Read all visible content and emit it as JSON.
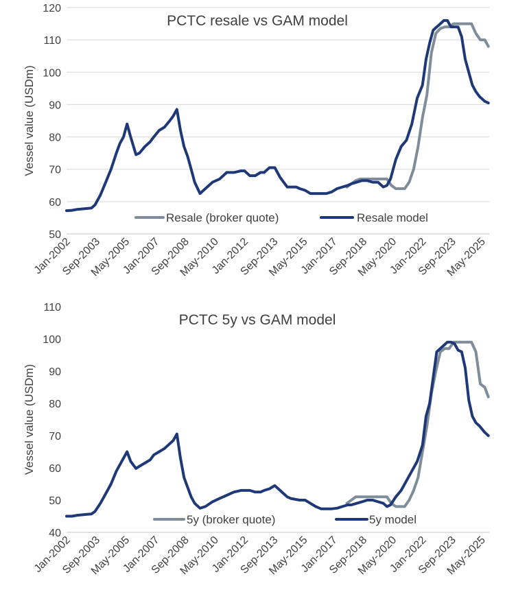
{
  "chart_data": [
    {
      "type": "line",
      "title": "PCTC resale vs GAM model",
      "ylabel": "Vessel value (USDm)",
      "xlabel": "",
      "ylim": [
        50,
        120
      ],
      "yticks": [
        50,
        60,
        70,
        80,
        90,
        100,
        110,
        120
      ],
      "xlim": [
        2002.0,
        2025.75
      ],
      "xtick_labels": [
        "Jan-2002",
        "Sep-2003",
        "May-2005",
        "Jan-2007",
        "Sep-2008",
        "May-2010",
        "Jan-2012",
        "Sep-2013",
        "May-2015",
        "Jan-2017",
        "Sep-2018",
        "May-2020",
        "Jan-2022",
        "Sep-2023",
        "May-2025"
      ],
      "xtick_values": [
        2002.0,
        2003.67,
        2005.33,
        2007.0,
        2008.67,
        2010.33,
        2012.0,
        2013.67,
        2015.33,
        2017.0,
        2018.67,
        2020.33,
        2022.0,
        2023.67,
        2025.33
      ],
      "grid": true,
      "legend": "bottom-center",
      "series": [
        {
          "name": "Resale (broker quote)",
          "color": "#7f8c99",
          "width": 4,
          "x": [
            2017.75,
            2018.0,
            2018.25,
            2018.5,
            2018.75,
            2019.0,
            2019.5,
            2019.75,
            2020.0,
            2020.25,
            2020.5,
            2020.75,
            2021.0,
            2021.25,
            2021.5,
            2021.75,
            2022.0,
            2022.25,
            2022.5,
            2022.75,
            2023.0,
            2023.25,
            2023.5,
            2023.75,
            2024.0,
            2024.25,
            2024.5,
            2024.75,
            2025.0,
            2025.25,
            2025.5,
            2025.7
          ],
          "y": [
            64.5,
            65.5,
            66.5,
            67,
            67,
            67,
            67,
            67,
            67,
            65,
            64,
            64,
            64,
            66,
            70,
            77,
            86,
            93,
            106,
            112,
            113.5,
            114,
            114,
            115,
            115,
            115,
            115,
            115,
            112,
            110,
            110,
            108
          ]
        },
        {
          "name": "Resale model",
          "color": "#1f3878",
          "width": 4,
          "x": [
            2002.0,
            2002.3,
            2002.6,
            2003.0,
            2003.4,
            2003.6,
            2003.9,
            2004.2,
            2004.5,
            2004.8,
            2005.0,
            2005.2,
            2005.4,
            2005.6,
            2005.9,
            2006.1,
            2006.4,
            2006.7,
            2006.9,
            2007.2,
            2007.5,
            2007.8,
            2008.0,
            2008.2,
            2008.4,
            2008.6,
            2008.8,
            2009.0,
            2009.2,
            2009.5,
            2009.8,
            2010.2,
            2010.6,
            2011.0,
            2011.4,
            2011.8,
            2012.0,
            2012.3,
            2012.6,
            2012.9,
            2013.1,
            2013.4,
            2013.7,
            2014.0,
            2014.2,
            2014.4,
            2014.6,
            2014.9,
            2015.1,
            2015.4,
            2015.7,
            2016.0,
            2016.3,
            2016.6,
            2016.9,
            2017.2,
            2017.5,
            2017.8,
            2018.0,
            2018.3,
            2018.6,
            2018.9,
            2019.2,
            2019.5,
            2019.8,
            2020.0,
            2020.2,
            2020.5,
            2020.8,
            2021.1,
            2021.4,
            2021.7,
            2022.0,
            2022.2,
            2022.4,
            2022.6,
            2022.8,
            2023.0,
            2023.2,
            2023.4,
            2023.6,
            2023.8,
            2024.0,
            2024.2,
            2024.4,
            2024.6,
            2024.8,
            2025.0,
            2025.2,
            2025.5,
            2025.7
          ],
          "y": [
            57.2,
            57.3,
            57.6,
            57.8,
            58,
            59,
            62,
            66,
            70,
            75,
            78,
            80,
            84,
            80,
            74.5,
            75,
            77,
            78.5,
            80,
            82,
            83,
            85,
            86.5,
            88.5,
            82,
            77,
            74,
            70,
            66,
            62.5,
            64,
            66,
            67,
            69,
            69,
            69.5,
            69.5,
            68,
            68,
            69,
            69,
            70.5,
            70.5,
            67.5,
            66,
            64.5,
            64.5,
            64.5,
            64,
            63.5,
            62.5,
            62.5,
            62.5,
            62.5,
            63,
            64,
            64.5,
            65,
            65.5,
            66,
            66.5,
            66.5,
            66,
            66,
            64.5,
            65,
            67,
            73,
            77,
            79,
            84,
            92,
            96,
            104,
            109,
            113,
            114,
            115,
            116,
            116,
            114,
            114,
            114,
            111,
            104,
            100,
            96,
            94,
            92.5,
            91,
            90.5
          ]
        }
      ]
    },
    {
      "type": "line",
      "title": "PCTC 5y vs GAM model",
      "ylabel": "Vessel value (USDm)",
      "xlabel": "",
      "ylim": [
        40,
        110
      ],
      "yticks": [
        40,
        50,
        60,
        70,
        80,
        90,
        100,
        110
      ],
      "xlim": [
        2002.0,
        2025.75
      ],
      "xtick_labels": [
        "Jan-2002",
        "Sep-2003",
        "May-2005",
        "Jan-2007",
        "Sep-2008",
        "May-2010",
        "Jan-2012",
        "Sep-2013",
        "May-2015",
        "Jan-2017",
        "Sep-2018",
        "May-2020",
        "Jan-2022",
        "Sep-2023",
        "May-2025"
      ],
      "xtick_values": [
        2002.0,
        2003.67,
        2005.33,
        2007.0,
        2008.67,
        2010.33,
        2012.0,
        2013.67,
        2015.33,
        2017.0,
        2018.67,
        2020.33,
        2022.0,
        2023.67,
        2025.33
      ],
      "grid": false,
      "legend": "bottom-center",
      "series": [
        {
          "name": "5y (broker quote)",
          "color": "#7f8c99",
          "width": 4,
          "x": [
            2017.75,
            2018.0,
            2018.25,
            2018.5,
            2018.75,
            2019.0,
            2019.5,
            2019.75,
            2020.0,
            2020.25,
            2020.5,
            2020.75,
            2021.0,
            2021.25,
            2021.5,
            2021.75,
            2022.0,
            2022.25,
            2022.5,
            2022.75,
            2023.0,
            2023.25,
            2023.5,
            2023.75,
            2024.0,
            2024.25,
            2024.5,
            2024.75,
            2025.0,
            2025.25,
            2025.5,
            2025.7
          ],
          "y": [
            49,
            50,
            51,
            51,
            51,
            51,
            51,
            51,
            51,
            49,
            48,
            48,
            48,
            50,
            53,
            57,
            65,
            73,
            83,
            90,
            96,
            97,
            97,
            99,
            99,
            99,
            99,
            99,
            96,
            86,
            85,
            82
          ]
        },
        {
          "name": "5y model",
          "color": "#1f3878",
          "width": 4,
          "x": [
            2002.0,
            2002.3,
            2002.6,
            2003.0,
            2003.4,
            2003.6,
            2003.9,
            2004.2,
            2004.5,
            2004.8,
            2005.0,
            2005.2,
            2005.4,
            2005.6,
            2005.9,
            2006.1,
            2006.4,
            2006.7,
            2006.9,
            2007.2,
            2007.5,
            2007.8,
            2008.0,
            2008.2,
            2008.4,
            2008.6,
            2008.8,
            2009.0,
            2009.2,
            2009.5,
            2009.8,
            2010.2,
            2010.6,
            2011.0,
            2011.4,
            2011.8,
            2012.0,
            2012.3,
            2012.6,
            2012.9,
            2013.1,
            2013.4,
            2013.7,
            2014.0,
            2014.2,
            2014.4,
            2014.6,
            2014.9,
            2015.1,
            2015.4,
            2015.7,
            2016.0,
            2016.3,
            2016.6,
            2016.9,
            2017.2,
            2017.5,
            2017.8,
            2018.0,
            2018.3,
            2018.6,
            2018.9,
            2019.2,
            2019.5,
            2019.8,
            2020.0,
            2020.2,
            2020.5,
            2020.8,
            2021.1,
            2021.4,
            2021.7,
            2022.0,
            2022.2,
            2022.4,
            2022.6,
            2022.8,
            2023.0,
            2023.2,
            2023.4,
            2023.6,
            2023.8,
            2024.0,
            2024.2,
            2024.4,
            2024.6,
            2024.8,
            2025.0,
            2025.2,
            2025.5,
            2025.7
          ],
          "y": [
            45,
            45,
            45.3,
            45.5,
            45.7,
            46.5,
            49,
            52,
            55,
            59,
            61,
            63,
            65,
            62,
            59.8,
            60.5,
            61.5,
            62.5,
            64,
            65,
            66,
            67.5,
            68.5,
            70.5,
            63,
            57,
            54,
            51,
            49,
            47.5,
            48,
            49.5,
            50.5,
            51.5,
            52.5,
            53,
            53,
            53,
            52.5,
            52.5,
            53,
            53.5,
            54.5,
            53,
            52,
            51,
            50.5,
            50.2,
            50,
            50,
            49,
            48,
            47.3,
            47.3,
            47.3,
            47.5,
            48,
            48.5,
            48.5,
            49,
            49.5,
            50,
            50,
            49.5,
            49,
            48,
            48.5,
            51,
            53,
            56,
            59,
            62,
            67,
            76,
            80,
            88,
            96,
            97,
            98,
            99,
            99,
            98.5,
            96.5,
            96,
            91,
            81,
            76,
            74,
            73,
            71,
            70
          ]
        }
      ]
    }
  ]
}
